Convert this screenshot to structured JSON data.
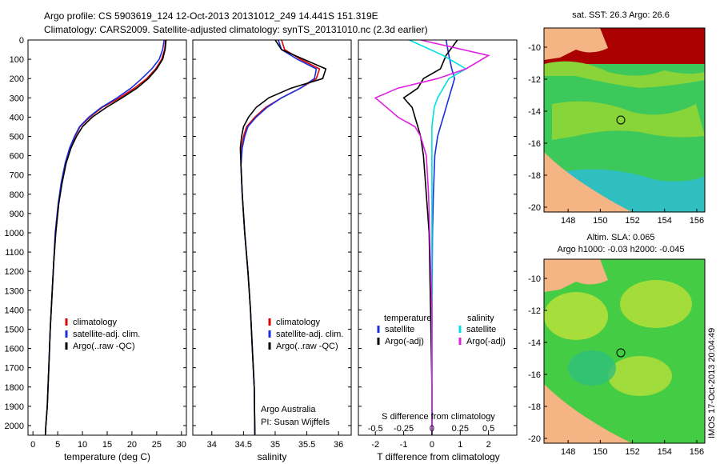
{
  "title_line1": "Argo profile: CS 5903619_124 12-Oct-2013 20131012_249 14.441S 151.319E",
  "title_line2": "Climatology: CARS2009. Satellite-adjusted climatology: synTS_20131010.nc (2.3d earlier)",
  "side_stamp": "IMOS 17-Oct-2013 20:04:49",
  "colors": {
    "climatology": "#e00000",
    "satellite": "#1a2fe0",
    "argo": "#000000",
    "sat_salinity": "#00e0e0",
    "argo_salinity_adj": "#e020e0"
  },
  "chart_data": [
    {
      "type": "line",
      "name": "temperature",
      "xlabel": "temperature (deg C)",
      "ylabel": "",
      "xlim": [
        -1,
        31
      ],
      "ylim": [
        2050,
        0
      ],
      "xticks": [
        "0",
        "5",
        "10",
        "15",
        "20",
        "25",
        "30"
      ],
      "yticks": [
        "0",
        "100",
        "200",
        "300",
        "400",
        "500",
        "600",
        "700",
        "800",
        "900",
        "1000",
        "1100",
        "1200",
        "1300",
        "1400",
        "1500",
        "1600",
        "1700",
        "1800",
        "1900",
        "2000"
      ],
      "legend": [
        "climatology",
        "satellite-adj. clim.",
        "Argo(..raw -QC)"
      ],
      "series": [
        {
          "name": "climatology",
          "x": [
            26.8,
            26.6,
            26,
            24.8,
            23,
            20.5,
            17.5,
            14,
            11.5,
            9.5,
            8.5,
            7.5,
            6.6,
            5.8,
            5.2,
            4.6,
            4.2,
            3.9,
            3.5,
            3.2,
            2.9,
            2.6,
            2.5
          ],
          "y": [
            0,
            50,
            100,
            150,
            200,
            250,
            300,
            350,
            400,
            450,
            500,
            560,
            640,
            740,
            850,
            1000,
            1150,
            1300,
            1500,
            1700,
            1900,
            2000,
            2050
          ]
        },
        {
          "name": "satellite",
          "x": [
            26.5,
            26.2,
            25.5,
            24,
            22,
            19.8,
            17,
            13.8,
            11.3,
            9.4,
            8.4,
            7.4,
            6.5,
            5.7,
            5.1,
            4.5,
            4.2,
            3.9,
            3.5,
            3.2,
            2.9,
            2.6,
            2.5
          ],
          "y": [
            0,
            50,
            100,
            150,
            200,
            250,
            300,
            350,
            400,
            450,
            500,
            560,
            640,
            740,
            850,
            1000,
            1150,
            1300,
            1500,
            1700,
            1900,
            2000,
            2050
          ]
        },
        {
          "name": "argo",
          "x": [
            26.9,
            26.7,
            26.2,
            25,
            23.3,
            21,
            18,
            14.8,
            12,
            10,
            8.8,
            7.7,
            6.7,
            5.9,
            5.2,
            4.6,
            4.2,
            3.9,
            3.5,
            3.2,
            2.9,
            2.6,
            2.5
          ],
          "y": [
            0,
            50,
            100,
            150,
            200,
            250,
            300,
            350,
            400,
            450,
            500,
            560,
            640,
            740,
            850,
            1000,
            1150,
            1300,
            1500,
            1700,
            1900,
            2000,
            2050
          ]
        }
      ]
    },
    {
      "type": "line",
      "name": "salinity",
      "xlabel": "salinity",
      "xlim": [
        33.7,
        36.2
      ],
      "ylim": [
        2050,
        0
      ],
      "xticks": [
        "34",
        "34.5",
        "35",
        "35.5",
        "36"
      ],
      "legend": [
        "climatology",
        "satellite-adj. clim.",
        "Argo(..raw -QC)"
      ],
      "footer": [
        "Argo Australia",
        "PI: Susan Wijffels"
      ],
      "series": [
        {
          "name": "climatology",
          "x": [
            35.1,
            35.15,
            35.4,
            35.7,
            35.65,
            35.4,
            35.1,
            34.85,
            34.68,
            34.55,
            34.5,
            34.47,
            34.46,
            34.48,
            34.52,
            34.57,
            34.61,
            34.64,
            34.67,
            34.68
          ],
          "y": [
            0,
            50,
            100,
            150,
            200,
            250,
            300,
            350,
            400,
            450,
            500,
            560,
            650,
            800,
            1000,
            1200,
            1400,
            1600,
            1800,
            2050
          ]
        },
        {
          "name": "satellite",
          "x": [
            35.05,
            35.1,
            35.35,
            35.65,
            35.62,
            35.4,
            35.1,
            34.87,
            34.7,
            34.57,
            34.52,
            34.48,
            34.46,
            34.48,
            34.52,
            34.57,
            34.61,
            34.64,
            34.67,
            34.68
          ],
          "y": [
            0,
            50,
            100,
            150,
            200,
            250,
            300,
            350,
            400,
            450,
            500,
            560,
            650,
            800,
            1000,
            1200,
            1400,
            1600,
            1800,
            2050
          ]
        },
        {
          "name": "argo",
          "x": [
            35.0,
            35.1,
            35.45,
            35.8,
            35.75,
            35.25,
            34.9,
            34.7,
            34.58,
            34.5,
            34.47,
            34.45,
            34.46,
            34.48,
            34.52,
            34.57,
            34.61,
            34.64,
            34.67,
            34.68
          ],
          "y": [
            0,
            50,
            100,
            150,
            200,
            250,
            300,
            350,
            400,
            450,
            500,
            560,
            650,
            800,
            1000,
            1200,
            1400,
            1600,
            1800,
            2050
          ]
        }
      ]
    },
    {
      "type": "line",
      "name": "differences",
      "xlabel_bottom": "T difference from climatology",
      "xlabel_top": "S difference from climatology",
      "xlim": [
        -2.6,
        3
      ],
      "ylim": [
        2050,
        0
      ],
      "xticks": [
        "-2",
        "-1",
        "0",
        "1",
        "2"
      ],
      "xticks_s": [
        "-0.5",
        "-0.25",
        "0",
        "0.25",
        "0.5"
      ],
      "legend_t": {
        "header": "temperature",
        "items": [
          "satellite",
          "Argo(-adj)"
        ]
      },
      "legend_s": {
        "header": "salinity",
        "items": [
          "satellite",
          "Argo(-adj)"
        ]
      },
      "series": [
        {
          "name": "T satellite",
          "x": [
            0.5,
            0.6,
            0.7,
            0.8,
            0.7,
            0.6,
            0.5,
            0.4,
            0.3,
            0.2,
            0.1,
            0.05,
            0.02,
            0,
            0,
            0
          ],
          "y": [
            0,
            80,
            150,
            200,
            250,
            300,
            350,
            400,
            450,
            500,
            600,
            800,
            1000,
            1400,
            1800,
            2050
          ]
        },
        {
          "name": "T argo",
          "x": [
            0.9,
            0.5,
            0.3,
            -0.3,
            -0.5,
            -1.0,
            -0.7,
            -0.6,
            -0.5,
            -0.4,
            -0.3,
            -0.2,
            -0.1,
            -0.05,
            0,
            0
          ],
          "y": [
            0,
            80,
            150,
            200,
            250,
            300,
            350,
            400,
            450,
            500,
            600,
            800,
            1000,
            1400,
            1800,
            2050
          ]
        },
        {
          "name": "S satellite",
          "x": [
            -0.2,
            0.1,
            0.3,
            0.15,
            0.1,
            0.05,
            0.02,
            0.01,
            0,
            0,
            0,
            0,
            0,
            0,
            0,
            0
          ],
          "y": [
            0,
            80,
            150,
            200,
            250,
            300,
            350,
            400,
            450,
            500,
            600,
            800,
            1000,
            1400,
            1800,
            2050
          ]
        },
        {
          "name": "S argo",
          "x": [
            -0.1,
            0.5,
            0.3,
            0.05,
            -0.3,
            -0.5,
            -0.4,
            -0.3,
            -0.15,
            -0.1,
            -0.05,
            -0.03,
            -0.02,
            0,
            0,
            0
          ],
          "y": [
            0,
            80,
            150,
            200,
            250,
            300,
            350,
            400,
            450,
            500,
            600,
            800,
            1000,
            1400,
            1800,
            2050
          ]
        }
      ]
    },
    {
      "type": "heatmap",
      "name": "sst-map",
      "title": "sat. SST: 26.3  Argo: 26.6",
      "xlim": [
        146.5,
        156.5
      ],
      "ylim": [
        -20.3,
        -8.8
      ],
      "xticks": [
        "148",
        "150",
        "152",
        "154",
        "156"
      ],
      "yticks": [
        "-10",
        "-12",
        "-14",
        "-16",
        "-18",
        "-20"
      ],
      "marker": {
        "lon": 151.319,
        "lat": -14.441
      }
    },
    {
      "type": "heatmap",
      "name": "sla-map",
      "title": "Altim. SLA: 0.065",
      "title2": "Argo h1000: -0.03 h2000: -0.045",
      "xlim": [
        146.5,
        156.5
      ],
      "ylim": [
        -20.3,
        -8.8
      ],
      "xticks": [
        "148",
        "150",
        "152",
        "154",
        "156"
      ],
      "yticks": [
        "-10",
        "-12",
        "-14",
        "-16",
        "-18",
        "-20"
      ],
      "marker": {
        "lon": 151.319,
        "lat": -14.441
      }
    }
  ]
}
